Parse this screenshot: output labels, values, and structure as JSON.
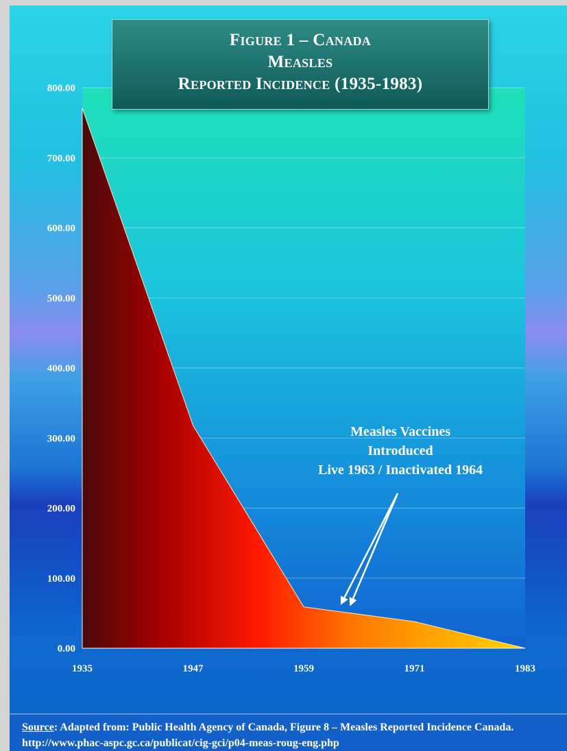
{
  "title": {
    "line1": "Figure 1 – Canada",
    "line2": "Measles",
    "line3": "Reported Incidence (1935-1983)"
  },
  "chart_data": {
    "type": "area",
    "title": "Figure 1 – Canada Measles Reported Incidence (1935-1983)",
    "x": [
      1935,
      1947,
      1959,
      1971,
      1983
    ],
    "values": [
      771,
      318,
      59,
      38,
      0
    ],
    "ylim": [
      0,
      800
    ],
    "xlim": [
      1935,
      1983
    ],
    "yticks": [
      "0.00",
      "100.00",
      "200.00",
      "300.00",
      "400.00",
      "500.00",
      "600.00",
      "700.00",
      "800.00"
    ],
    "xticks": [
      "1935",
      "1947",
      "1959",
      "1971",
      "1983"
    ],
    "grid": true,
    "legend": "none",
    "fill_gradient": [
      "#4a0a0a",
      "#a80000",
      "#ff1a00",
      "#ff7a00",
      "#ffd400"
    ],
    "annotation": {
      "lines": [
        "Measles Vaccines",
        "Introduced",
        "Live 1963 / Inactivated 1964"
      ],
      "points_to": [
        1963,
        1964
      ]
    }
  },
  "footer": {
    "source_label": "Source",
    "text": ": Adapted from: Public Health Agency of Canada, Figure 8 – Measles Reported Incidence Canada. http://www.phac-aspc.gc.ca/publicat/cig-gci/p04-meas-roug-eng.php"
  }
}
